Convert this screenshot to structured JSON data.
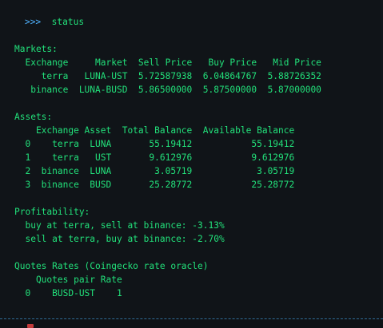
{
  "prompt": {
    "symbol": ">>>",
    "command": "status"
  },
  "markets": {
    "heading": "Markets:",
    "header": "  Exchange     Market  Sell Price   Buy Price   Mid Price",
    "rows": [
      "     terra   LUNA-UST  5.72587938  6.04864767  5.88726352",
      "   binance  LUNA-BUSD  5.86500000  5.87500000  5.87000000"
    ]
  },
  "assets": {
    "heading": "Assets:",
    "header": "    Exchange Asset  Total Balance  Available Balance",
    "rows": [
      "  0    terra  LUNA       55.19412           55.19412",
      "  1    terra   UST       9.612976           9.612976",
      "  2  binance  LUNA        3.05719            3.05719",
      "  3  binance  BUSD       25.28772           25.28772"
    ]
  },
  "profitability": {
    "heading": "Profitability:",
    "lines": [
      "  buy at terra, sell at binance: -3.13%",
      "  sell at terra, buy at binance: -2.70%"
    ]
  },
  "quotes": {
    "heading": "Quotes Rates (Coingecko rate oracle)",
    "header": "    Quotes pair Rate",
    "rows": [
      "  0    BUSD-UST    1"
    ]
  },
  "colors": {
    "background": "#101418",
    "text": "#22e07a",
    "prompt": "#4fb3ff",
    "divider": "#2e6a93",
    "cursor": "#c33b3b"
  }
}
